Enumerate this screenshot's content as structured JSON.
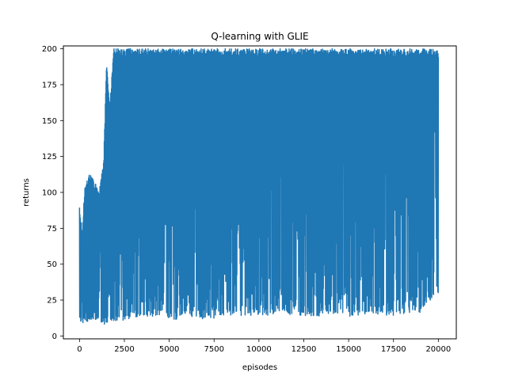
{
  "chart_data": {
    "type": "line",
    "title": "Q-learning with GLIE",
    "xlabel": "episodes",
    "ylabel": "returns",
    "xlim": [
      -900,
      21000
    ],
    "ylim": [
      -2,
      202
    ],
    "xticks": [
      0,
      2500,
      5000,
      7500,
      10000,
      12500,
      15000,
      17500,
      20000
    ],
    "yticks": [
      0,
      25,
      50,
      75,
      100,
      125,
      150,
      175,
      200
    ],
    "grid": false,
    "legend": "none",
    "line_color": "#1f77b4",
    "series": [
      {
        "envelope_upper": [
          [
            0,
            93
          ],
          [
            150,
            72
          ],
          [
            300,
            106
          ],
          [
            500,
            112
          ],
          [
            700,
            112
          ],
          [
            900,
            106
          ],
          [
            1100,
            101
          ],
          [
            1350,
            122
          ],
          [
            1500,
            190
          ],
          [
            1700,
            162
          ],
          [
            1900,
            200
          ],
          [
            2100,
            200
          ],
          [
            2300,
            200
          ],
          [
            2500,
            200
          ],
          [
            5000,
            200
          ],
          [
            10000,
            200
          ],
          [
            15000,
            200
          ],
          [
            20000,
            200
          ]
        ],
        "envelope_lower": [
          [
            0,
            9
          ],
          [
            500,
            9
          ],
          [
            1000,
            9
          ],
          [
            1500,
            8
          ],
          [
            2000,
            10
          ],
          [
            2500,
            11
          ],
          [
            3000,
            12
          ],
          [
            3500,
            13
          ],
          [
            4000,
            13
          ],
          [
            4500,
            15
          ],
          [
            5000,
            12
          ],
          [
            5500,
            10
          ],
          [
            6000,
            14
          ],
          [
            6500,
            12
          ],
          [
            7000,
            11
          ],
          [
            7500,
            12
          ],
          [
            8000,
            13
          ],
          [
            9000,
            14
          ],
          [
            10000,
            14
          ],
          [
            11000,
            15
          ],
          [
            12000,
            14
          ],
          [
            13000,
            13
          ],
          [
            14000,
            14
          ],
          [
            15000,
            13
          ],
          [
            16000,
            15
          ],
          [
            17000,
            14
          ],
          [
            18000,
            14
          ],
          [
            19000,
            16
          ],
          [
            20000,
            30
          ]
        ]
      }
    ]
  }
}
